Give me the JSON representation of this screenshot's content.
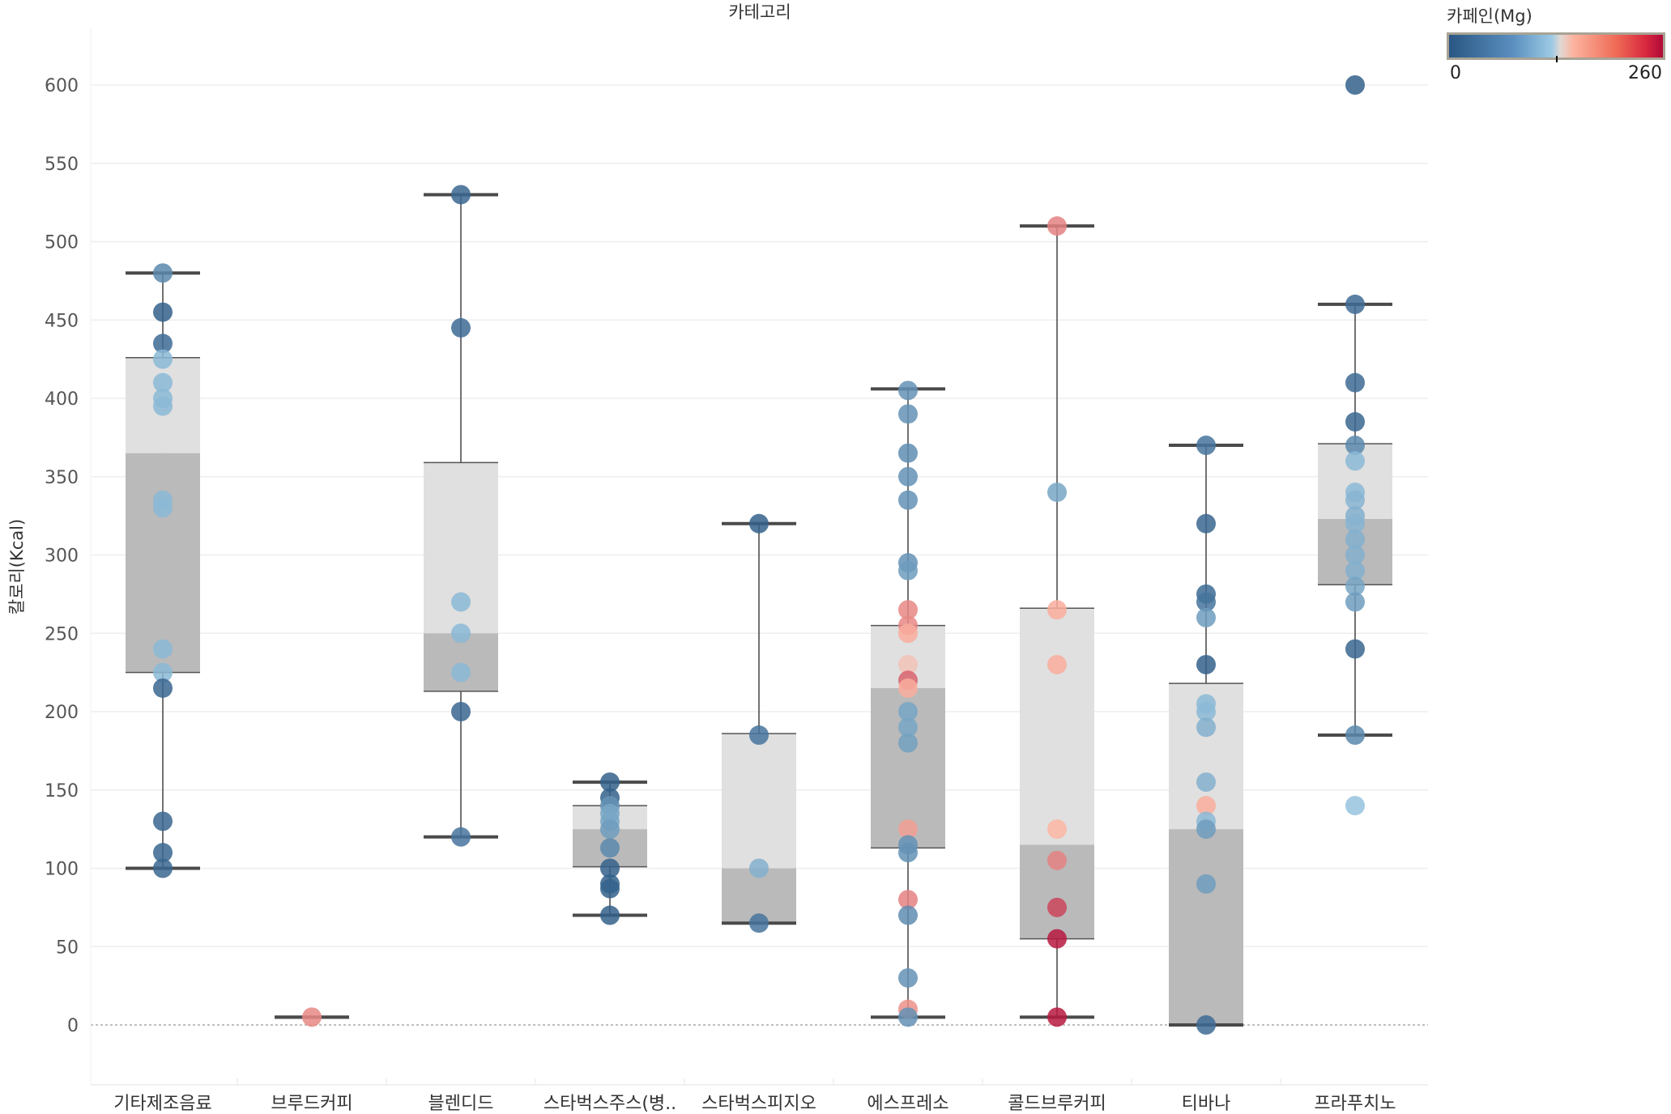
{
  "chart_data": {
    "type": "box-strip",
    "title": "카테고리",
    "xlabel": "",
    "ylabel": "칼로리(Kcal)",
    "ylim": [
      -40,
      640
    ],
    "yticks": [
      0,
      50,
      100,
      150,
      200,
      250,
      300,
      350,
      400,
      450,
      500,
      550,
      600
    ],
    "grid": true,
    "color_legend": {
      "title": "카페인(Mg)",
      "min": 0,
      "max": 260,
      "min_label": "0",
      "max_label": "260",
      "placement": "top-right",
      "colors": [
        "#2a5783",
        "#9ccae4",
        "#dcdcdc",
        "#fcb4a0",
        "#b00a38"
      ]
    },
    "categories": [
      {
        "name": "기타제조음료",
        "box": {
          "low": 100,
          "q1": 225,
          "median": 365,
          "q3": 426,
          "high": 480
        },
        "points": [
          [
            480,
            50
          ],
          [
            455,
            10
          ],
          [
            435,
            20
          ],
          [
            425,
            100
          ],
          [
            410,
            100
          ],
          [
            400,
            100
          ],
          [
            395,
            100
          ],
          [
            335,
            100
          ],
          [
            330,
            100
          ],
          [
            240,
            100
          ],
          [
            225,
            100
          ],
          [
            215,
            15
          ],
          [
            130,
            15
          ],
          [
            110,
            15
          ],
          [
            100,
            15
          ]
        ]
      },
      {
        "name": "브루드커피",
        "box": {
          "low": 5,
          "q1": 5,
          "median": 5,
          "q3": 5,
          "high": 5
        },
        "points": [
          [
            5,
            175
          ]
        ]
      },
      {
        "name": "블렌디드",
        "box": {
          "low": 120,
          "q1": 213,
          "median": 250,
          "q3": 359,
          "high": 530
        },
        "points": [
          [
            530,
            15
          ],
          [
            445,
            20
          ],
          [
            270,
            100
          ],
          [
            250,
            100
          ],
          [
            225,
            100
          ],
          [
            200,
            15
          ],
          [
            120,
            30
          ]
        ]
      },
      {
        "name": "스타벅스주스(병..",
        "box": {
          "low": 70,
          "q1": 101,
          "median": 125,
          "q3": 140,
          "high": 155
        },
        "points": [
          [
            155,
            10
          ],
          [
            145,
            10
          ],
          [
            140,
            60
          ],
          [
            135,
            80
          ],
          [
            130,
            80
          ],
          [
            125,
            70
          ],
          [
            113,
            50
          ],
          [
            100,
            10
          ],
          [
            90,
            10
          ],
          [
            87,
            10
          ],
          [
            70,
            10
          ]
        ]
      },
      {
        "name": "스타벅스피지오",
        "box": {
          "low": 65,
          "q1": 65,
          "median": 100,
          "q3": 186,
          "high": 320
        },
        "points": [
          [
            320,
            10
          ],
          [
            185,
            30
          ],
          [
            100,
            90
          ],
          [
            65,
            30
          ]
        ]
      },
      {
        "name": "에스프레소",
        "box": {
          "low": 5,
          "q1": 113,
          "median": 215,
          "q3": 255,
          "high": 406
        },
        "points": [
          [
            405,
            60
          ],
          [
            390,
            60
          ],
          [
            365,
            55
          ],
          [
            350,
            60
          ],
          [
            335,
            60
          ],
          [
            295,
            60
          ],
          [
            290,
            70
          ],
          [
            265,
            175
          ],
          [
            255,
            175
          ],
          [
            250,
            150
          ],
          [
            230,
            140
          ],
          [
            220,
            200
          ],
          [
            215,
            150
          ],
          [
            200,
            80
          ],
          [
            190,
            80
          ],
          [
            180,
            75
          ],
          [
            125,
            160
          ],
          [
            115,
            60
          ],
          [
            110,
            60
          ],
          [
            80,
            180
          ],
          [
            70,
            55
          ],
          [
            30,
            60
          ],
          [
            10,
            170
          ],
          [
            5,
            60
          ]
        ]
      },
      {
        "name": "콜드브루커피",
        "box": {
          "low": 5,
          "q1": 55,
          "median": 115,
          "q3": 266,
          "high": 510
        },
        "points": [
          [
            510,
            180
          ],
          [
            340,
            80
          ],
          [
            265,
            150
          ],
          [
            230,
            150
          ],
          [
            125,
            145
          ],
          [
            105,
            180
          ],
          [
            75,
            220
          ],
          [
            55,
            250
          ],
          [
            5,
            250
          ]
        ]
      },
      {
        "name": "티바나",
        "box": {
          "low": 0,
          "q1": 0,
          "median": 125,
          "q3": 218,
          "high": 370
        },
        "points": [
          [
            370,
            30
          ],
          [
            320,
            15
          ],
          [
            275,
            20
          ],
          [
            270,
            30
          ],
          [
            260,
            70
          ],
          [
            230,
            10
          ],
          [
            205,
            100
          ],
          [
            200,
            100
          ],
          [
            190,
            90
          ],
          [
            155,
            90
          ],
          [
            140,
            150
          ],
          [
            130,
            100
          ],
          [
            125,
            70
          ],
          [
            90,
            70
          ],
          [
            0,
            20
          ]
        ]
      },
      {
        "name": "프라푸치노",
        "box": {
          "low": 185,
          "q1": 281,
          "median": 323,
          "q3": 371,
          "high": 460
        },
        "points": [
          [
            600,
            10
          ],
          [
            460,
            20
          ],
          [
            410,
            20
          ],
          [
            385,
            15
          ],
          [
            370,
            50
          ],
          [
            360,
            100
          ],
          [
            340,
            100
          ],
          [
            335,
            95
          ],
          [
            325,
            90
          ],
          [
            320,
            95
          ],
          [
            310,
            90
          ],
          [
            300,
            90
          ],
          [
            290,
            90
          ],
          [
            280,
            80
          ],
          [
            270,
            70
          ],
          [
            240,
            15
          ],
          [
            185,
            50
          ],
          [
            140,
            110
          ]
        ]
      }
    ]
  }
}
